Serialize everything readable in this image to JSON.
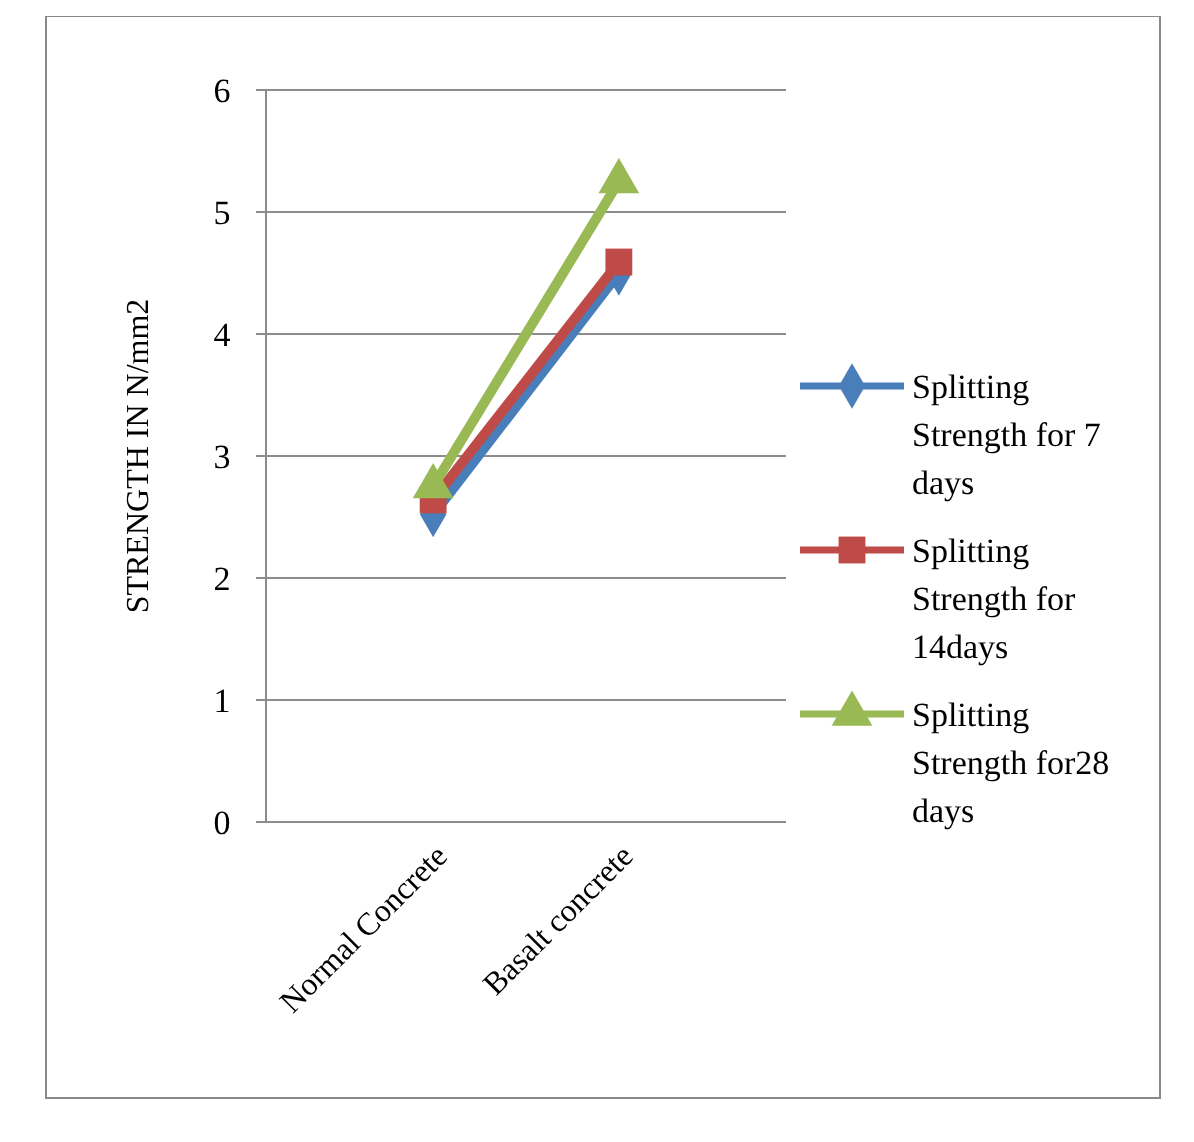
{
  "chart_data": {
    "type": "line",
    "ylabel": "STRENGTH IN N/mm2",
    "categories": [
      "Normal Concrete",
      "Basalt concrete"
    ],
    "ylim": [
      0,
      6
    ],
    "yticks": [
      0,
      1,
      2,
      3,
      4,
      5,
      6
    ],
    "grid": "y",
    "legend": "right",
    "series": [
      {
        "name": "Splitting Strength for 7 days",
        "color": "#4a7ebb",
        "marker": "diamond",
        "values": [
          2.52,
          4.5
        ]
      },
      {
        "name": "Splitting Strength for 14days",
        "color": "#be4b48",
        "marker": "square",
        "values": [
          2.64,
          4.59
        ]
      },
      {
        "name": "Splitting Strength for28 days",
        "color": "#98b954",
        "marker": "triangle",
        "values": [
          2.75,
          5.25
        ]
      }
    ]
  }
}
